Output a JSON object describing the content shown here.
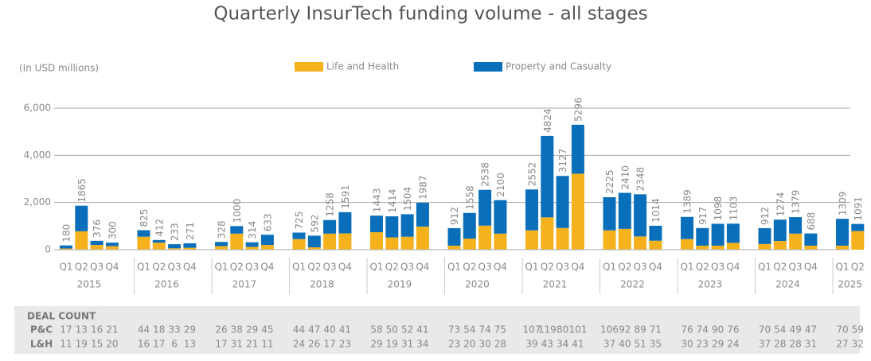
{
  "chart_data": {
    "type": "stacked-bar",
    "title": "Quarterly InsurTech funding volume - all stages",
    "y_label": "(In USD millions)",
    "category_groups": [
      {
        "label": "2015",
        "categories": [
          "Q1",
          "Q2",
          "Q3",
          "Q4"
        ]
      },
      {
        "label": "2016",
        "categories": [
          "Q1",
          "Q2",
          "Q3",
          "Q4"
        ]
      },
      {
        "label": "2017",
        "categories": [
          "Q1",
          "Q2",
          "Q3",
          "Q4"
        ]
      },
      {
        "label": "2018",
        "categories": [
          "Q1",
          "Q2",
          "Q3",
          "Q4"
        ]
      },
      {
        "label": "2019",
        "categories": [
          "Q1",
          "Q2",
          "Q3",
          "Q4"
        ]
      },
      {
        "label": "2020",
        "categories": [
          "Q1",
          "Q2",
          "Q3",
          "Q4"
        ]
      },
      {
        "label": "2021",
        "categories": [
          "Q1",
          "Q2",
          "Q3",
          "Q4"
        ]
      },
      {
        "label": "2022",
        "categories": [
          "Q1",
          "Q2",
          "Q3",
          "Q4"
        ]
      },
      {
        "label": "2023",
        "categories": [
          "Q1",
          "Q2",
          "Q3",
          "Q4"
        ]
      },
      {
        "label": "2024",
        "categories": [
          "Q1",
          "Q2",
          "Q3",
          "Q4"
        ]
      },
      {
        "label": "2025",
        "categories": [
          "Q1",
          "Q2"
        ]
      }
    ],
    "series": [
      {
        "name": "Life and Health",
        "color": "#f5b21c",
        "values": [
          50,
          780,
          200,
          150,
          550,
          300,
          60,
          80,
          150,
          680,
          120,
          200,
          450,
          100,
          680,
          690,
          740,
          520,
          550,
          980,
          170,
          470,
          1020,
          680,
          820,
          1370,
          920,
          3220,
          820,
          880,
          560,
          380,
          450,
          170,
          170,
          290,
          240,
          370,
          680,
          170,
          170,
          790
        ]
      },
      {
        "name": "Property and Casualty",
        "color": "#0a6fba",
        "values": [
          130,
          1085,
          176,
          150,
          275,
          112,
          173,
          191,
          178,
          320,
          194,
          433,
          275,
          492,
          578,
          901,
          703,
          894,
          954,
          1007,
          742,
          1088,
          1518,
          1420,
          1732,
          3454,
          2207,
          2076,
          1405,
          1530,
          1788,
          634,
          939,
          747,
          928,
          813,
          672,
          904,
          699,
          518,
          1139,
          301
        ]
      }
    ],
    "total_labels": [
      180,
      1865,
      376,
      300,
      825,
      412,
      233,
      271,
      328,
      1000,
      314,
      633,
      725,
      592,
      1258,
      1591,
      1443,
      1414,
      1504,
      1987,
      912,
      1558,
      2538,
      2100,
      2552,
      4824,
      3127,
      5296,
      2225,
      2410,
      2348,
      1014,
      1389,
      917,
      1098,
      1103,
      912,
      1274,
      1379,
      688,
      1309,
      1091
    ],
    "ylim": [
      0,
      6000
    ],
    "yticks": [
      0,
      {
        "value": 2000,
        "label": "2,000"
      },
      {
        "value": 4000,
        "label": "4,000"
      },
      {
        "value": 6000,
        "label": "6,000"
      }
    ],
    "grid": true,
    "deal_count": {
      "title": "DEAL COUNT",
      "rows": [
        {
          "label": "P&C",
          "values": [
            17,
            13,
            16,
            21,
            44,
            18,
            33,
            29,
            26,
            38,
            29,
            45,
            44,
            47,
            40,
            41,
            58,
            50,
            52,
            41,
            73,
            54,
            74,
            75,
            107,
            119,
            80,
            101,
            106,
            92,
            89,
            71,
            76,
            74,
            90,
            76,
            70,
            54,
            49,
            47,
            70,
            59
          ]
        },
        {
          "label": "L&H",
          "values": [
            11,
            19,
            15,
            20,
            16,
            17,
            6,
            13,
            17,
            31,
            21,
            11,
            24,
            26,
            17,
            23,
            29,
            19,
            31,
            34,
            23,
            20,
            30,
            28,
            39,
            43,
            34,
            41,
            37,
            40,
            51,
            35,
            30,
            23,
            29,
            24,
            37,
            28,
            28,
            31,
            27,
            32
          ]
        }
      ]
    }
  }
}
